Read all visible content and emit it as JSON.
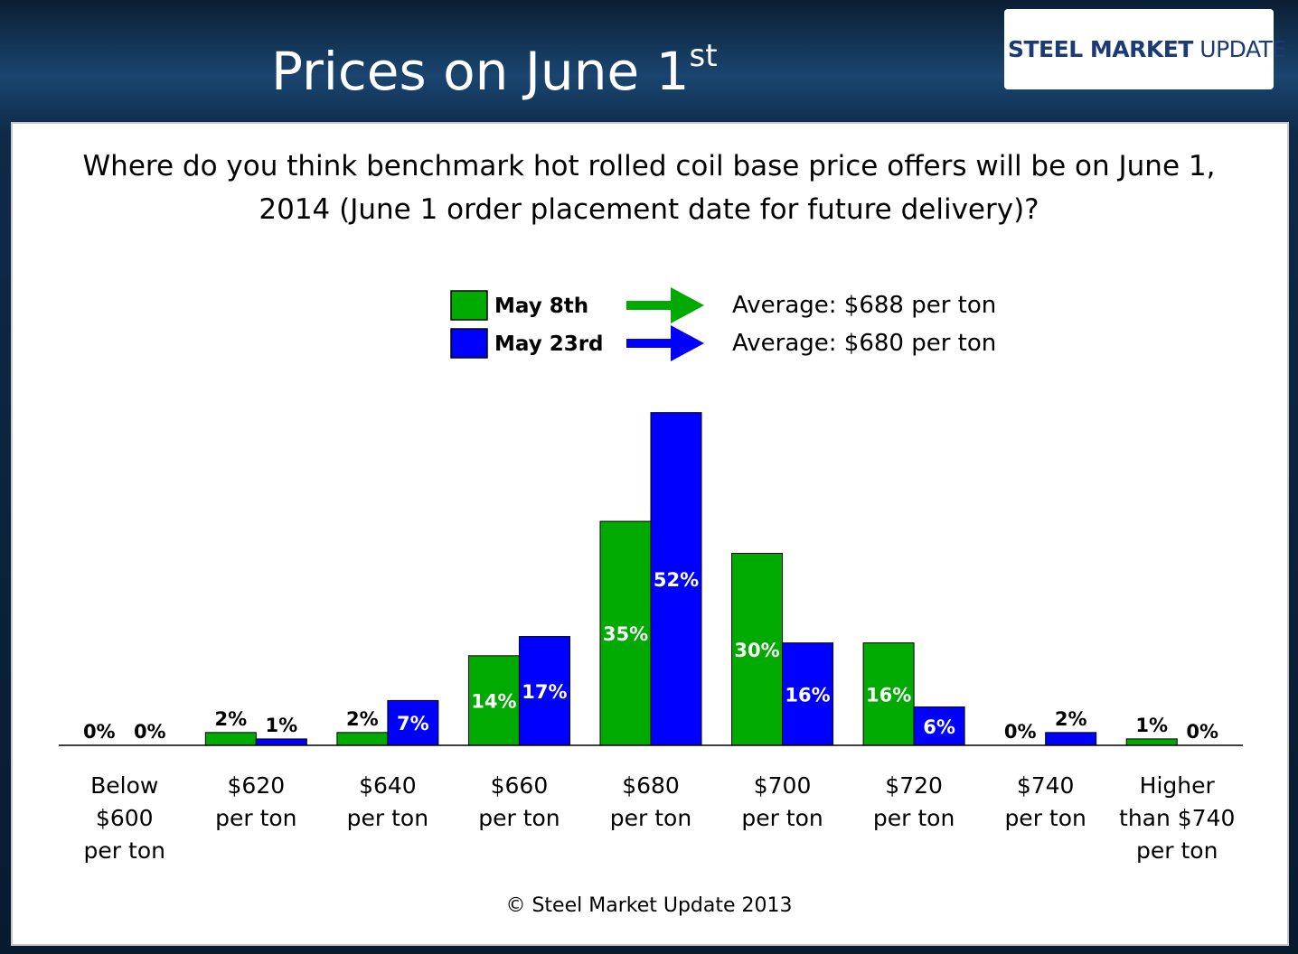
{
  "slide_title": "Prices on June 1",
  "slide_title_sup": "st",
  "logo": {
    "bold": "STEEL MARKET",
    "light": "UPDATE"
  },
  "footer": "© Steel Market Update 2013",
  "chart_data": {
    "type": "bar",
    "title": "Where do you think benchmark hot rolled coil base price offers will be on June 1, 2014 (June 1 order placement date for future delivery)?",
    "categories": [
      "Below\n$600\nper ton",
      "$620\nper ton",
      "$640\nper ton",
      "$660\nper ton",
      "$680\nper ton",
      "$700\nper ton",
      "$720\nper ton",
      "$740\nper ton",
      "Higher\nthan $740\nper ton"
    ],
    "series": [
      {
        "name": "May 8th",
        "color": "#00aa00",
        "annotation": "Average: $688 per ton",
        "values": [
          0,
          2,
          2,
          14,
          35,
          30,
          16,
          0,
          1
        ],
        "value_labels": [
          "0%",
          "2%",
          "2%",
          "14%",
          "35%",
          "30%",
          "16%",
          "0%",
          "1%"
        ]
      },
      {
        "name": "May 23rd",
        "color": "#0000ff",
        "annotation": "Average: $680 per ton",
        "values": [
          0,
          1,
          7,
          17,
          52,
          16,
          6,
          2,
          0
        ],
        "value_labels": [
          "0%",
          "1%",
          "7%",
          "17%",
          "52%",
          "16%",
          "6%",
          "2%",
          "0%"
        ]
      }
    ],
    "ylim": [
      0,
      60
    ]
  }
}
